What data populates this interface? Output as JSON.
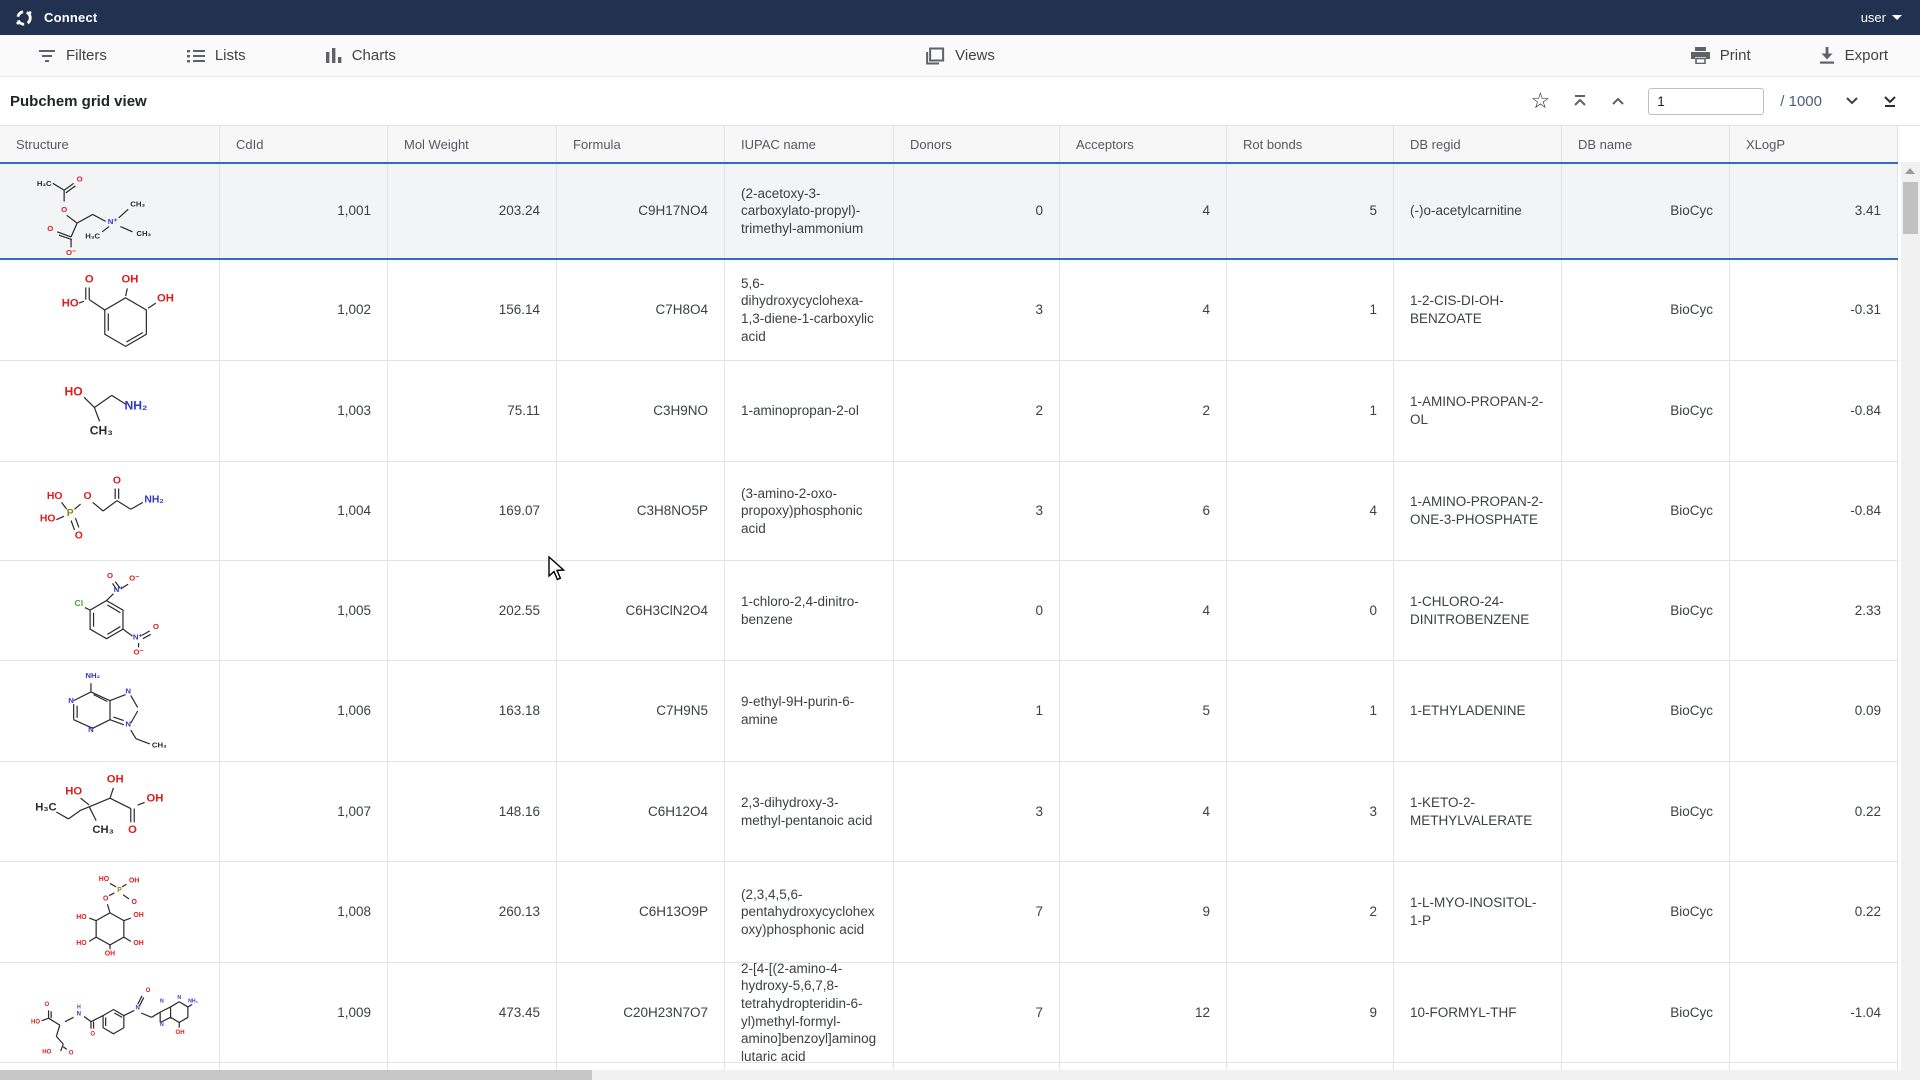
{
  "topbar": {
    "app_name": "Connect",
    "user_label": "user"
  },
  "toolbar": {
    "filters_label": "Filters",
    "lists_label": "Lists",
    "charts_label": "Charts",
    "views_label": "Views",
    "print_label": "Print",
    "export_label": "Export"
  },
  "view_header": {
    "title": "Pubchem grid view",
    "page_value": "1",
    "page_total": "/ 1000"
  },
  "colors": {
    "topbar_bg": "#233150",
    "selection_blue": "#2f6bce",
    "atom_o": "#e01b1b",
    "atom_n": "#3137c8",
    "atom_cl": "#3faa3f",
    "atom_p": "#9a7d0a"
  },
  "table": {
    "columns": [
      {
        "key": "structure",
        "label": "Structure",
        "align": "left"
      },
      {
        "key": "cdid",
        "label": "CdId",
        "align": "right"
      },
      {
        "key": "mol_weight",
        "label": "Mol Weight",
        "align": "right"
      },
      {
        "key": "formula",
        "label": "Formula",
        "align": "right"
      },
      {
        "key": "iupac",
        "label": "IUPAC name",
        "align": "left"
      },
      {
        "key": "donors",
        "label": "Donors",
        "align": "right"
      },
      {
        "key": "acceptors",
        "label": "Acceptors",
        "align": "right"
      },
      {
        "key": "rot_bonds",
        "label": "Rot bonds",
        "align": "right"
      },
      {
        "key": "db_regid",
        "label": "DB regid",
        "align": "left"
      },
      {
        "key": "db_name",
        "label": "DB name",
        "align": "right"
      },
      {
        "key": "xlogp",
        "label": "XLogP",
        "align": "right"
      }
    ],
    "rows": [
      {
        "structure": "acetylcarnitine",
        "cdid": "1,001",
        "mol_weight": "203.24",
        "formula": "C9H17NO4",
        "iupac": "(2-acetoxy-3-carboxylato-propyl)-trimethyl-ammonium",
        "donors": "0",
        "acceptors": "4",
        "rot_bonds": "5",
        "db_regid": "(-)o-acetylcarnitine",
        "db_name": "BioCyc",
        "xlogp": "3.41",
        "selected": true
      },
      {
        "structure": "dihydroxybenzoate",
        "cdid": "1,002",
        "mol_weight": "156.14",
        "formula": "C7H8O4",
        "iupac": "5,6-dihydroxycyclohexa-1,3-diene-1-carboxylic acid",
        "donors": "3",
        "acceptors": "4",
        "rot_bonds": "1",
        "db_regid": "1-2-CIS-DI-OH-BENZOATE",
        "db_name": "BioCyc",
        "xlogp": "-0.31",
        "selected": false
      },
      {
        "structure": "aminopropanol",
        "cdid": "1,003",
        "mol_weight": "75.11",
        "formula": "C3H9NO",
        "iupac": "1-aminopropan-2-ol",
        "donors": "2",
        "acceptors": "2",
        "rot_bonds": "1",
        "db_regid": "1-AMINO-PROPAN-2-OL",
        "db_name": "BioCyc",
        "xlogp": "-0.84",
        "selected": false
      },
      {
        "structure": "aminopropanone_phosphate",
        "cdid": "1,004",
        "mol_weight": "169.07",
        "formula": "C3H8NO5P",
        "iupac": "(3-amino-2-oxo-propoxy)phosphonic acid",
        "donors": "3",
        "acceptors": "6",
        "rot_bonds": "4",
        "db_regid": "1-AMINO-PROPAN-2-ONE-3-PHOSPHATE",
        "db_name": "BioCyc",
        "xlogp": "-0.84",
        "selected": false
      },
      {
        "structure": "chlorodinitrobenzene",
        "cdid": "1,005",
        "mol_weight": "202.55",
        "formula": "C6H3ClN2O4",
        "iupac": "1-chloro-2,4-dinitro-benzene",
        "donors": "0",
        "acceptors": "4",
        "rot_bonds": "0",
        "db_regid": "1-CHLORO-24-DINITROBENZENE",
        "db_name": "BioCyc",
        "xlogp": "2.33",
        "selected": false
      },
      {
        "structure": "ethyladenine",
        "cdid": "1,006",
        "mol_weight": "163.18",
        "formula": "C7H9N5",
        "iupac": "9-ethyl-9H-purin-6-amine",
        "donors": "1",
        "acceptors": "5",
        "rot_bonds": "1",
        "db_regid": "1-ETHYLADENINE",
        "db_name": "BioCyc",
        "xlogp": "0.09",
        "selected": false
      },
      {
        "structure": "dihydroxymethylpentanoate",
        "cdid": "1,007",
        "mol_weight": "148.16",
        "formula": "C6H12O4",
        "iupac": "2,3-dihydroxy-3-methyl-pentanoic acid",
        "donors": "3",
        "acceptors": "4",
        "rot_bonds": "3",
        "db_regid": "1-KETO-2-METHYLVALERATE",
        "db_name": "BioCyc",
        "xlogp": "0.22",
        "selected": false
      },
      {
        "structure": "inositol_phosphate",
        "cdid": "1,008",
        "mol_weight": "260.13",
        "formula": "C6H13O9P",
        "iupac": "(2,3,4,5,6-pentahydroxycyclohexoxy)phosphonic acid",
        "donors": "7",
        "acceptors": "9",
        "rot_bonds": "2",
        "db_regid": "1-L-MYO-INOSITOL-1-P",
        "db_name": "BioCyc",
        "xlogp": "0.22",
        "selected": false
      },
      {
        "structure": "formyl_thf",
        "cdid": "1,009",
        "mol_weight": "473.45",
        "formula": "C20H23N7O7",
        "iupac": "2-[4-[(2-amino-4-hydroxy-5,6,7,8-tetrahydropteridin-6-yl)methyl-formyl-amino]benzoyl]aminoglutaric acid",
        "donors": "7",
        "acceptors": "12",
        "rot_bonds": "9",
        "db_regid": "10-FORMYL-THF",
        "db_name": "BioCyc",
        "xlogp": "-1.04",
        "selected": false
      }
    ]
  }
}
